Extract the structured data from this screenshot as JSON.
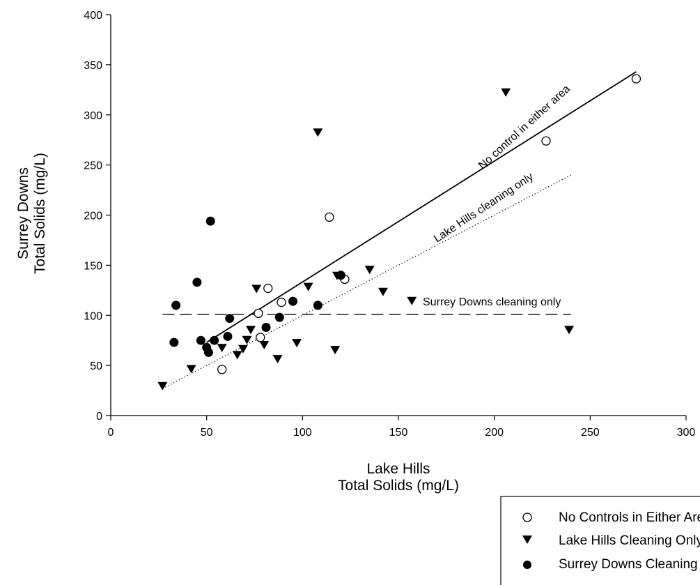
{
  "chart_data": {
    "type": "scatter",
    "xlabel": [
      "Lake Hills",
      "Total Solids (mg/L)"
    ],
    "ylabel": [
      "Surrey Downs",
      "Total Solids (mg/L)"
    ],
    "xlim": [
      0,
      300
    ],
    "ylim": [
      0,
      400
    ],
    "x_ticks": [
      0,
      50,
      100,
      150,
      200,
      250,
      300
    ],
    "y_ticks": [
      0,
      50,
      100,
      150,
      200,
      250,
      300,
      350,
      400
    ],
    "grid": false,
    "legend_position": "bottom-right",
    "series": [
      {
        "name": "No Controls in Either Area",
        "marker": "open-circle",
        "points": [
          [
            58,
            46
          ],
          [
            78,
            78
          ],
          [
            77,
            102
          ],
          [
            82,
            127
          ],
          [
            89,
            113
          ],
          [
            114,
            198
          ],
          [
            122,
            136
          ],
          [
            227,
            274
          ],
          [
            274,
            336
          ]
        ]
      },
      {
        "name": "Lake Hills Cleaning Only",
        "marker": "down-triangle",
        "points": [
          [
            27,
            30
          ],
          [
            42,
            47
          ],
          [
            58,
            68
          ],
          [
            66,
            61
          ],
          [
            69,
            67
          ],
          [
            71,
            76
          ],
          [
            73,
            86
          ],
          [
            76,
            127
          ],
          [
            80,
            71
          ],
          [
            87,
            57
          ],
          [
            97,
            73
          ],
          [
            103,
            129
          ],
          [
            108,
            283
          ],
          [
            117,
            66
          ],
          [
            118,
            140
          ],
          [
            135,
            146
          ],
          [
            142,
            124
          ],
          [
            157,
            115
          ],
          [
            206,
            323
          ],
          [
            239,
            86
          ]
        ]
      },
      {
        "name": "Surrey Downs Cleaning Only",
        "marker": "filled-circle",
        "points": [
          [
            33,
            73
          ],
          [
            34,
            110
          ],
          [
            45,
            133
          ],
          [
            47,
            75
          ],
          [
            50,
            68
          ],
          [
            51,
            63
          ],
          [
            52,
            194
          ],
          [
            54,
            75
          ],
          [
            61,
            79
          ],
          [
            62,
            97
          ],
          [
            81,
            88
          ],
          [
            88,
            98
          ],
          [
            95,
            114
          ],
          [
            108,
            110
          ],
          [
            120,
            140
          ]
        ]
      }
    ],
    "fit_lines": [
      {
        "label": "No control in either area",
        "style": "solid",
        "x": [
          50,
          274
        ],
        "y": [
          73,
          343
        ]
      },
      {
        "label": "Lake Hills cleaning only",
        "style": "dotted",
        "x": [
          27,
          240
        ],
        "y": [
          27,
          240
        ]
      },
      {
        "label": "Surrey Downs cleaning only",
        "style": "dashed",
        "x": [
          27,
          240
        ],
        "y": [
          101,
          101
        ]
      }
    ]
  },
  "legend": {
    "items": [
      {
        "label": "No Controls in Either Area",
        "marker": "open-circle"
      },
      {
        "label": "Lake Hills Cleaning Only",
        "marker": "down-triangle"
      },
      {
        "label": "Surrey Downs Cleaning Only",
        "marker": "filled-circle"
      }
    ]
  }
}
